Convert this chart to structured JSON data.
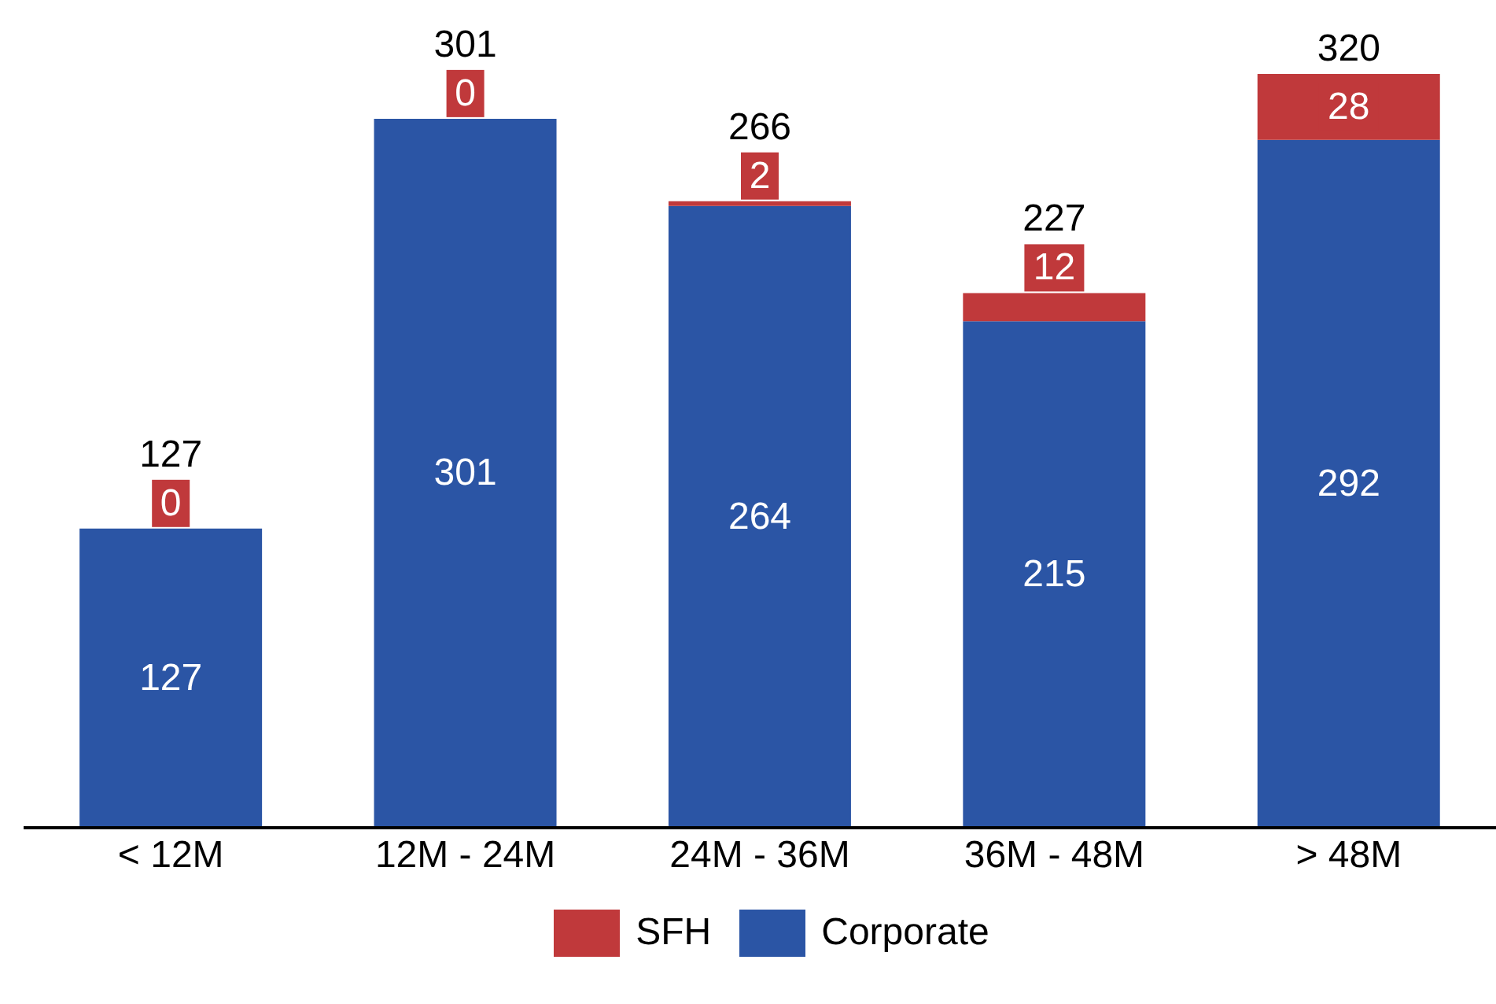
{
  "chart_data": {
    "type": "bar",
    "stacked": true,
    "categories": [
      "< 12M",
      "12M - 24M",
      "24M - 36M",
      "36M - 48M",
      "> 48M"
    ],
    "series": [
      {
        "name": "Corporate",
        "color": "#2b55a5",
        "values": [
          127,
          301,
          264,
          215,
          292
        ]
      },
      {
        "name": "SFH",
        "color": "#c0393b",
        "values": [
          0,
          0,
          2,
          12,
          28
        ]
      }
    ],
    "data_labels": true,
    "totals": [
      "127",
      "301",
      "266",
      "227",
      "320"
    ],
    "legend": "bottom"
  }
}
